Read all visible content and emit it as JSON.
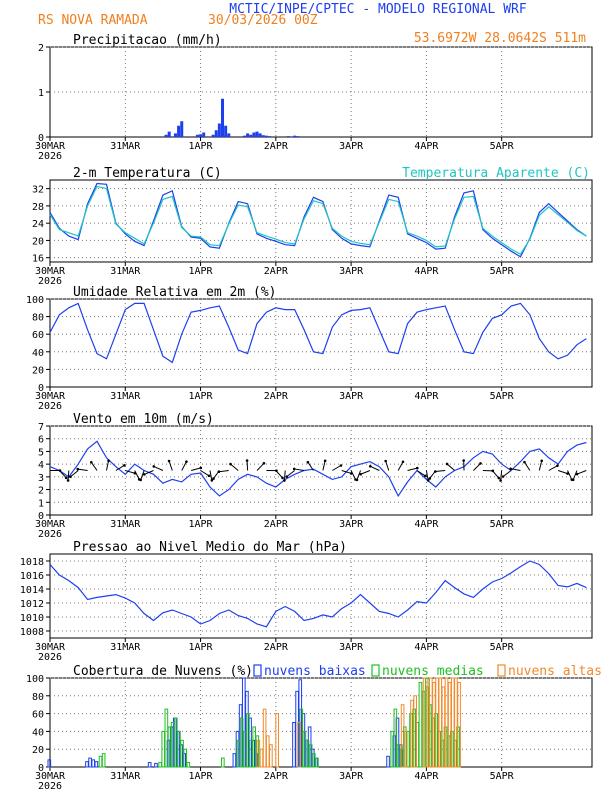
{
  "header": {
    "title": "MCTIC/INPE/CPTEC - MODELO REGIONAL WRF",
    "station": "RS NOVA RAMADA",
    "run": "30/03/2026 00Z",
    "location": "53.6972W 28.0642S 511m",
    "title_color": "#1d3ff0",
    "info_color": "#f07f1e"
  },
  "time_axis": {
    "ticks": [
      {
        "label": "30MAR",
        "day": 0
      },
      {
        "label": "31MAR",
        "day": 1
      },
      {
        "label": "1APR",
        "day": 2
      },
      {
        "label": "2APR",
        "day": 3
      },
      {
        "label": "3APR",
        "day": 4
      },
      {
        "label": "4APR",
        "day": 5
      },
      {
        "label": "5APR",
        "day": 6
      }
    ],
    "year_label": "2026",
    "range_days": [
      0,
      7.2
    ]
  },
  "chart_data": [
    {
      "type": "bar",
      "id": "precip",
      "title": "Precipitacao (mm/h)",
      "ylim": [
        0,
        2
      ],
      "yticks": [
        0,
        1,
        2
      ],
      "color": "#1d3ff0",
      "x_hours": [
        37,
        38,
        40,
        41,
        42,
        47,
        48,
        49,
        52,
        53,
        54,
        55,
        56,
        57,
        62,
        63,
        64,
        65,
        66,
        67,
        68,
        69,
        70,
        76,
        78,
        79
      ],
      "values": [
        0.05,
        0.12,
        0.08,
        0.25,
        0.35,
        0.05,
        0.06,
        0.1,
        0.05,
        0.15,
        0.3,
        0.85,
        0.25,
        0.08,
        0.03,
        0.08,
        0.05,
        0.1,
        0.12,
        0.08,
        0.04,
        0.03,
        0.02,
        0.02,
        0.03,
        0.02
      ]
    },
    {
      "type": "line",
      "id": "temp",
      "title": "2-m Temperatura (C)",
      "ylim": [
        15,
        34
      ],
      "yticks": [
        16,
        20,
        24,
        28,
        32
      ],
      "series": [
        {
          "name": "2-m Temperatura (C)",
          "color": "#1d3ff0",
          "hours": [
            0,
            3,
            6,
            9,
            12,
            15,
            18,
            21,
            24,
            27,
            30,
            33,
            36,
            39,
            42,
            45,
            48,
            51,
            54,
            57,
            60,
            63,
            66,
            69,
            72,
            75,
            78,
            81,
            84,
            87,
            90,
            93,
            96,
            99,
            102,
            105,
            108,
            111,
            114,
            117,
            120,
            123,
            126,
            129,
            132,
            135,
            138,
            141,
            144,
            147,
            150,
            153,
            156,
            159,
            162,
            165,
            168,
            171
          ],
          "values": [
            26.5,
            22.8,
            21.0,
            20.2,
            28.5,
            33.2,
            33.0,
            24.0,
            21.5,
            19.8,
            18.8,
            24.5,
            30.5,
            31.5,
            23.2,
            20.8,
            20.5,
            18.5,
            18.2,
            24.0,
            29.0,
            28.5,
            21.5,
            20.5,
            19.8,
            19.0,
            18.8,
            25.5,
            30.0,
            29.0,
            22.5,
            20.5,
            19.2,
            18.8,
            18.5,
            24.5,
            30.5,
            30.0,
            21.5,
            20.5,
            19.5,
            18.0,
            18.2,
            25.5,
            31.0,
            31.5,
            22.5,
            20.5,
            19.0,
            17.5,
            16.2,
            20.5,
            26.5,
            28.5,
            26.5,
            24.5,
            22.5,
            21.0
          ]
        },
        {
          "name": "Temperatura Aparente (C)",
          "color": "#1fc5c5",
          "hours": [
            0,
            3,
            6,
            9,
            12,
            15,
            18,
            21,
            24,
            27,
            30,
            33,
            36,
            39,
            42,
            45,
            48,
            51,
            54,
            57,
            60,
            63,
            66,
            69,
            72,
            75,
            78,
            81,
            84,
            87,
            90,
            93,
            96,
            99,
            102,
            105,
            108,
            111,
            114,
            117,
            120,
            123,
            126,
            129,
            132,
            135,
            138,
            141,
            144,
            147,
            150,
            153,
            156,
            159,
            162,
            165,
            168,
            171
          ],
          "values": [
            26.0,
            22.5,
            21.8,
            21.0,
            28.0,
            32.5,
            32.0,
            23.8,
            21.8,
            20.5,
            19.2,
            24.0,
            29.5,
            30.2,
            23.0,
            21.0,
            20.8,
            19.0,
            18.8,
            23.8,
            28.2,
            27.8,
            21.8,
            21.0,
            20.3,
            19.5,
            19.2,
            25.0,
            29.2,
            28.5,
            22.8,
            21.0,
            19.8,
            19.3,
            19.0,
            24.2,
            29.5,
            29.0,
            21.8,
            21.0,
            20.0,
            18.5,
            18.7,
            25.0,
            30.0,
            30.2,
            22.8,
            21.0,
            19.5,
            18.0,
            16.8,
            20.3,
            25.8,
            27.8,
            26.0,
            24.2,
            22.3,
            21.0
          ]
        }
      ]
    },
    {
      "type": "line",
      "id": "rh",
      "title": "Umidade Relativa em 2m (%)",
      "ylim": [
        0,
        100
      ],
      "yticks": [
        0,
        20,
        40,
        60,
        80,
        100
      ],
      "series": [
        {
          "name": "Umidade Relativa em 2m (%)",
          "color": "#1d3ff0",
          "hours": [
            0,
            3,
            6,
            9,
            12,
            15,
            18,
            21,
            24,
            27,
            30,
            33,
            36,
            39,
            42,
            45,
            48,
            51,
            54,
            57,
            60,
            63,
            66,
            69,
            72,
            75,
            78,
            81,
            84,
            87,
            90,
            93,
            96,
            99,
            102,
            105,
            108,
            111,
            114,
            117,
            120,
            123,
            126,
            129,
            132,
            135,
            138,
            141,
            144,
            147,
            150,
            153,
            156,
            159,
            162,
            165,
            168,
            171
          ],
          "values": [
            62,
            82,
            90,
            95,
            65,
            38,
            32,
            60,
            88,
            95,
            95,
            65,
            35,
            28,
            60,
            85,
            87,
            90,
            92,
            68,
            42,
            38,
            72,
            85,
            90,
            88,
            88,
            65,
            40,
            38,
            68,
            82,
            87,
            88,
            90,
            65,
            40,
            38,
            72,
            85,
            88,
            90,
            92,
            65,
            40,
            38,
            62,
            78,
            82,
            92,
            95,
            82,
            55,
            40,
            32,
            36,
            48,
            55
          ]
        }
      ]
    },
    {
      "type": "line",
      "id": "wind",
      "title": "Vento em 10m (m/s)",
      "ylim": [
        0,
        7
      ],
      "yticks": [
        0,
        1,
        2,
        3,
        4,
        5,
        6,
        7
      ],
      "note": "wind direction arrows drawn along the speed line",
      "series": [
        {
          "name": "Vento em 10m (m/s)",
          "color": "#1d3ff0",
          "hours": [
            0,
            3,
            6,
            9,
            12,
            15,
            18,
            21,
            24,
            27,
            30,
            33,
            36,
            39,
            42,
            45,
            48,
            51,
            54,
            57,
            60,
            63,
            66,
            69,
            72,
            75,
            78,
            81,
            84,
            87,
            90,
            93,
            96,
            99,
            102,
            105,
            108,
            111,
            114,
            117,
            120,
            123,
            126,
            129,
            132,
            135,
            138,
            141,
            144,
            147,
            150,
            153,
            156,
            159,
            162,
            165,
            168,
            171
          ],
          "values": [
            3.8,
            3.5,
            3.0,
            4.0,
            5.2,
            5.8,
            4.5,
            3.8,
            3.2,
            4.0,
            3.5,
            3.2,
            2.5,
            2.8,
            2.6,
            3.2,
            3.3,
            2.2,
            1.5,
            2.0,
            2.8,
            3.2,
            3.0,
            2.5,
            2.2,
            2.8,
            3.2,
            3.5,
            3.6,
            3.2,
            2.8,
            3.0,
            3.8,
            4.0,
            4.2,
            3.8,
            3.0,
            1.5,
            2.6,
            3.5,
            2.8,
            2.2,
            3.0,
            3.5,
            3.8,
            4.5,
            5.0,
            4.8,
            4.0,
            3.5,
            4.2,
            5.0,
            5.2,
            4.5,
            4.0,
            5.0,
            5.5,
            5.7
          ]
        }
      ]
    },
    {
      "type": "line",
      "id": "pres",
      "title": "Pressao ao Nivel Medio do Mar (hPa)",
      "ylim": [
        1007,
        1019
      ],
      "yticks": [
        1008,
        1010,
        1012,
        1014,
        1016,
        1018
      ],
      "series": [
        {
          "name": "Pressao ao Nivel Medio do Mar (hPa)",
          "color": "#1d3ff0",
          "hours": [
            0,
            3,
            6,
            9,
            12,
            15,
            18,
            21,
            24,
            27,
            30,
            33,
            36,
            39,
            42,
            45,
            48,
            51,
            54,
            57,
            60,
            63,
            66,
            69,
            72,
            75,
            78,
            81,
            84,
            87,
            90,
            93,
            96,
            99,
            102,
            105,
            108,
            111,
            114,
            117,
            120,
            123,
            126,
            129,
            132,
            135,
            138,
            141,
            144,
            147,
            150,
            153,
            156,
            159,
            162,
            165,
            168,
            171
          ],
          "values": [
            1017.5,
            1016.0,
            1015.2,
            1014.2,
            1012.5,
            1012.8,
            1013.0,
            1013.2,
            1012.7,
            1012.0,
            1010.5,
            1009.5,
            1010.6,
            1011.0,
            1010.5,
            1010.0,
            1009.0,
            1009.5,
            1010.5,
            1011.0,
            1010.2,
            1009.8,
            1009.0,
            1008.6,
            1010.8,
            1011.5,
            1010.8,
            1009.5,
            1009.8,
            1010.3,
            1010.0,
            1011.2,
            1012.0,
            1013.2,
            1012.0,
            1010.8,
            1010.5,
            1010.0,
            1011.0,
            1012.2,
            1012.0,
            1013.5,
            1015.2,
            1014.2,
            1013.3,
            1012.8,
            1014.0,
            1015.0,
            1015.5,
            1016.3,
            1017.2,
            1018.0,
            1017.5,
            1016.2,
            1014.5,
            1014.3,
            1014.8,
            1014.2
          ]
        }
      ]
    },
    {
      "type": "bar",
      "id": "cloud",
      "title": "Cobertura de Nuvens (%)",
      "ylim": [
        0,
        100
      ],
      "yticks": [
        0,
        20,
        40,
        60,
        80,
        100
      ],
      "series": [
        {
          "name": "nuvens baixas",
          "color": "#1d3ff0",
          "x_hours": [
            0,
            12,
            13,
            14,
            15,
            32,
            34,
            38,
            39,
            40,
            41,
            42,
            43,
            59,
            60,
            61,
            62,
            63,
            64,
            65,
            66,
            78,
            79,
            80,
            81,
            82,
            83,
            84,
            85,
            108,
            110,
            111,
            112
          ],
          "values": [
            8,
            6,
            10,
            8,
            6,
            5,
            4,
            30,
            45,
            55,
            40,
            25,
            15,
            15,
            40,
            70,
            100,
            85,
            55,
            30,
            15,
            50,
            85,
            98,
            60,
            30,
            45,
            20,
            10,
            12,
            35,
            55,
            25
          ]
        },
        {
          "name": "nuvens medias",
          "color": "#20c020",
          "x_hours": [
            16,
            17,
            35,
            36,
            37,
            38,
            39,
            40,
            41,
            42,
            43,
            44,
            55,
            60,
            61,
            62,
            63,
            64,
            65,
            66,
            80,
            81,
            82,
            83,
            84,
            85,
            109,
            110,
            111,
            112,
            113,
            114,
            115,
            116,
            117,
            118,
            119,
            120,
            121,
            122,
            123,
            124,
            125,
            126,
            127,
            128,
            129,
            130
          ],
          "values": [
            12,
            15,
            5,
            40,
            65,
            45,
            50,
            55,
            40,
            30,
            20,
            5,
            10,
            30,
            55,
            40,
            60,
            30,
            45,
            35,
            65,
            40,
            30,
            25,
            15,
            10,
            40,
            65,
            25,
            20,
            45,
            40,
            60,
            65,
            50,
            95,
            85,
            100,
            70,
            55,
            60,
            40,
            30,
            45,
            35,
            40,
            30,
            45
          ]
        },
        {
          "name": "nuvens altas",
          "color": "#f08a2a",
          "x_hours": [
            66,
            67,
            68,
            69,
            70,
            72,
            79,
            112,
            113,
            115,
            116,
            119,
            120,
            121,
            122,
            123,
            124,
            125,
            126,
            127,
            128,
            129,
            130
          ],
          "values": [
            30,
            20,
            65,
            35,
            25,
            60,
            50,
            70,
            40,
            75,
            80,
            100,
            90,
            100,
            95,
            100,
            100,
            90,
            100,
            95,
            100,
            100,
            95
          ]
        }
      ]
    }
  ]
}
